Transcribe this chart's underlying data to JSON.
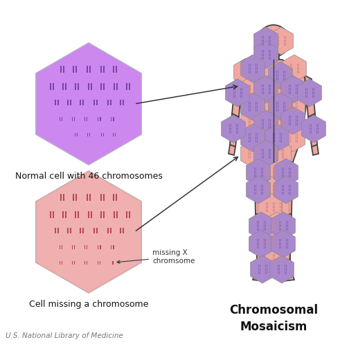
{
  "bg_color": "#ffffff",
  "purple_hex_color": "#cc88ee",
  "pink_hex_color": "#f0b0b0",
  "purple_chrom_color": "#7744aa",
  "pink_chrom_color": "#bb4455",
  "body_purple_color": "#aa88cc",
  "body_pink_color": "#f0a8a0",
  "body_outline_color": "#444444",
  "title": "Chromosomal\nMosaicism",
  "label_normal": "Normal cell with 46 chromosomes",
  "label_missing": "Cell missing a chromosome",
  "label_missing_x": "missing X\nchromsome",
  "footer": "U.S. National Library of Medicine",
  "title_fontsize": 12,
  "label_fontsize": 9,
  "footer_fontsize": 7.5
}
